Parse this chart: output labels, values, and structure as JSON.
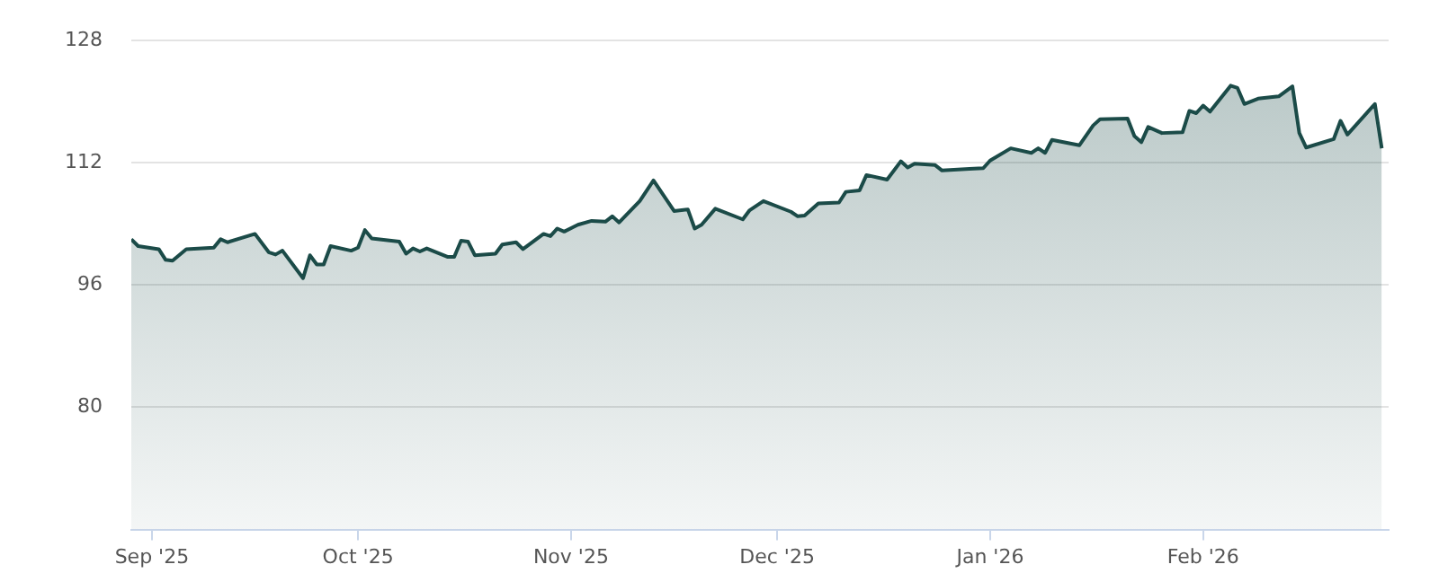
{
  "chart_data": {
    "type": "area",
    "x": [
      "2025-08-29",
      "2025-08-30",
      "2025-09-02",
      "2025-09-03",
      "2025-09-04",
      "2025-09-06",
      "2025-09-10",
      "2025-09-11",
      "2025-09-12",
      "2025-09-16",
      "2025-09-18",
      "2025-09-19",
      "2025-09-20",
      "2025-09-23",
      "2025-09-24",
      "2025-09-25",
      "2025-09-26",
      "2025-09-27",
      "2025-09-30",
      "2025-10-01",
      "2025-10-02",
      "2025-10-03",
      "2025-10-07",
      "2025-10-08",
      "2025-10-09",
      "2025-10-10",
      "2025-10-11",
      "2025-10-14",
      "2025-10-15",
      "2025-10-16",
      "2025-10-17",
      "2025-10-18",
      "2025-10-21",
      "2025-10-22",
      "2025-10-24",
      "2025-10-25",
      "2025-10-28",
      "2025-10-29",
      "2025-10-30",
      "2025-10-31",
      "2025-11-02",
      "2025-11-04",
      "2025-11-06",
      "2025-11-07",
      "2025-11-08",
      "2025-11-11",
      "2025-11-13",
      "2025-11-16",
      "2025-11-18",
      "2025-11-19",
      "2025-11-20",
      "2025-11-22",
      "2025-11-26",
      "2025-11-27",
      "2025-11-29",
      "2025-12-03",
      "2025-12-04",
      "2025-12-05",
      "2025-12-07",
      "2025-12-10",
      "2025-12-11",
      "2025-12-13",
      "2025-12-14",
      "2025-12-17",
      "2025-12-19",
      "2025-12-20",
      "2025-12-21",
      "2025-12-24",
      "2025-12-25",
      "2025-12-29",
      "2025-12-31",
      "2026-01-01",
      "2026-01-04",
      "2026-01-07",
      "2026-01-08",
      "2026-01-09",
      "2026-01-10",
      "2026-01-14",
      "2026-01-16",
      "2026-01-17",
      "2026-01-21",
      "2026-01-22",
      "2026-01-23",
      "2026-01-24",
      "2026-01-26",
      "2026-01-29",
      "2026-01-30",
      "2026-01-31",
      "2026-02-01",
      "2026-02-02",
      "2026-02-05",
      "2026-02-06",
      "2026-02-07",
      "2026-02-09",
      "2026-02-12",
      "2026-02-14",
      "2026-02-15",
      "2026-02-16",
      "2026-02-20",
      "2026-02-21",
      "2026-02-22",
      "2026-02-26",
      "2026-02-27"
    ],
    "series": [
      {
        "color": "#1b4b48",
        "values": [
          102.0,
          101.1,
          100.7,
          99.3,
          99.2,
          100.7,
          100.9,
          102.0,
          101.6,
          102.7,
          100.3,
          100.0,
          100.5,
          96.9,
          99.9,
          98.7,
          98.7,
          101.1,
          100.5,
          100.9,
          103.2,
          102.1,
          101.7,
          100.1,
          100.8,
          100.4,
          100.8,
          99.7,
          99.7,
          101.8,
          101.7,
          99.9,
          100.1,
          101.3,
          101.6,
          100.7,
          102.7,
          102.4,
          103.4,
          103.0,
          103.9,
          104.4,
          104.3,
          105.0,
          104.2,
          107.0,
          109.7,
          105.7,
          105.9,
          103.4,
          103.9,
          106.0,
          104.6,
          105.8,
          107.0,
          105.6,
          105.0,
          105.1,
          106.7,
          106.8,
          108.2,
          108.4,
          110.4,
          109.8,
          112.2,
          111.4,
          111.9,
          111.7,
          111.0,
          111.2,
          111.3,
          112.3,
          113.9,
          113.3,
          113.9,
          113.3,
          115.0,
          114.3,
          116.9,
          117.7,
          117.8,
          115.5,
          114.7,
          116.7,
          115.9,
          116.0,
          118.8,
          118.5,
          119.5,
          118.7,
          122.1,
          121.8,
          119.7,
          120.4,
          120.7,
          122.0,
          115.9,
          114.0,
          115.1,
          117.5,
          115.7,
          119.7,
          113.9
        ]
      }
    ],
    "xlim": [
      "2025-08-29",
      "2026-02-28"
    ],
    "xticks": [
      {
        "value": "2025-09-01",
        "label": "Sep '25"
      },
      {
        "value": "2025-10-01",
        "label": "Oct '25"
      },
      {
        "value": "2025-11-01",
        "label": "Nov '25"
      },
      {
        "value": "2025-12-01",
        "label": "Dec '25"
      },
      {
        "value": "2026-01-01",
        "label": "Jan '26"
      },
      {
        "value": "2026-02-01",
        "label": "Feb '26"
      }
    ],
    "ylim": [
      64,
      128
    ],
    "yticks": [
      80,
      96,
      112,
      128
    ],
    "grid": "y",
    "marker": "none"
  }
}
